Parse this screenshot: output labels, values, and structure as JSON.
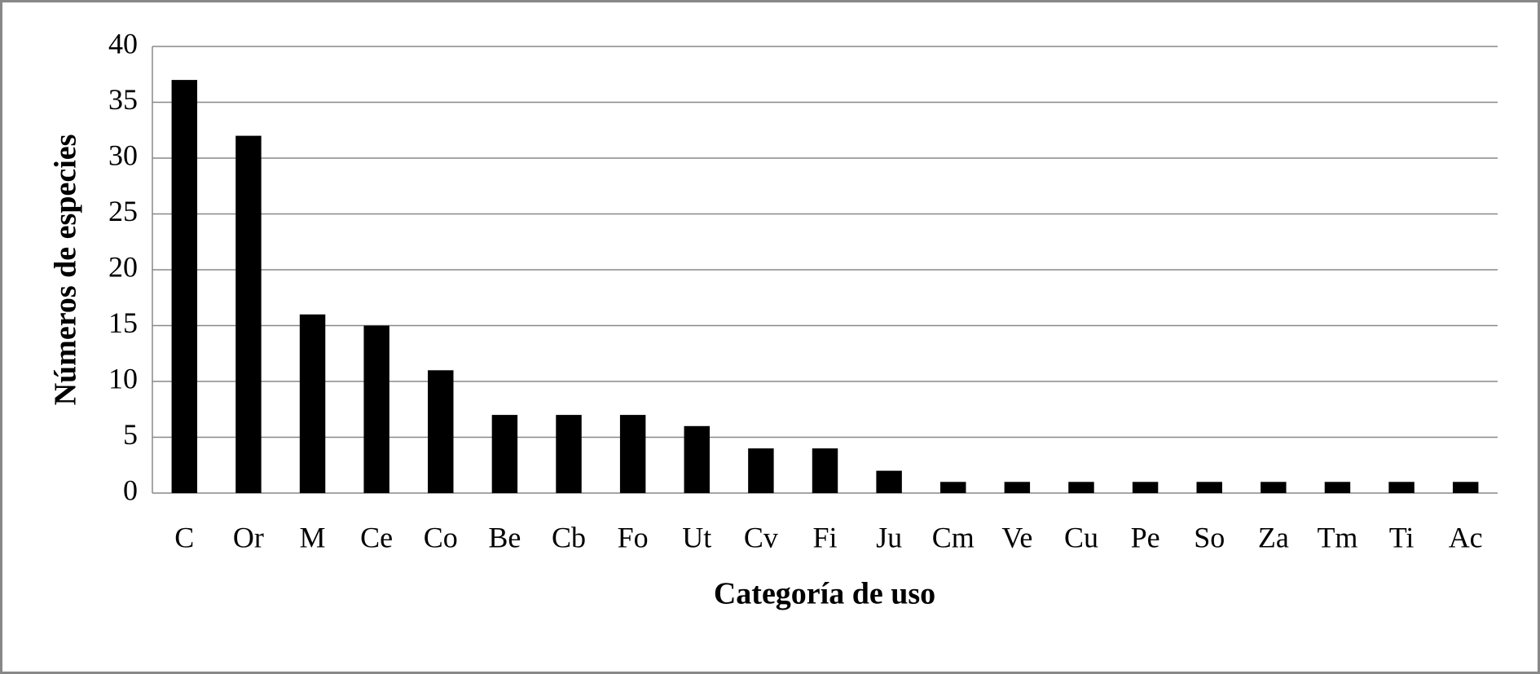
{
  "chart_data": {
    "type": "bar",
    "x_label": "Categoría de uso",
    "y_label": "Números de especies",
    "categories": [
      "C",
      "Or",
      "M",
      "Ce",
      "Co",
      "Be",
      "Cb",
      "Fo",
      "Ut",
      "Cv",
      "Fi",
      "Ju",
      "Cm",
      "Ve",
      "Cu",
      "Pe",
      "So",
      "Za",
      "Tm",
      "Ti",
      "Ac"
    ],
    "values": [
      37,
      32,
      16,
      15,
      11,
      7,
      7,
      7,
      6,
      4,
      4,
      2,
      1,
      1,
      1,
      1,
      1,
      1,
      1,
      1,
      1
    ],
    "color": "#000000",
    "ylim": [
      0,
      40
    ],
    "yticks": [
      0,
      5,
      10,
      15,
      20,
      25,
      30,
      35,
      40
    ],
    "grid": true
  }
}
